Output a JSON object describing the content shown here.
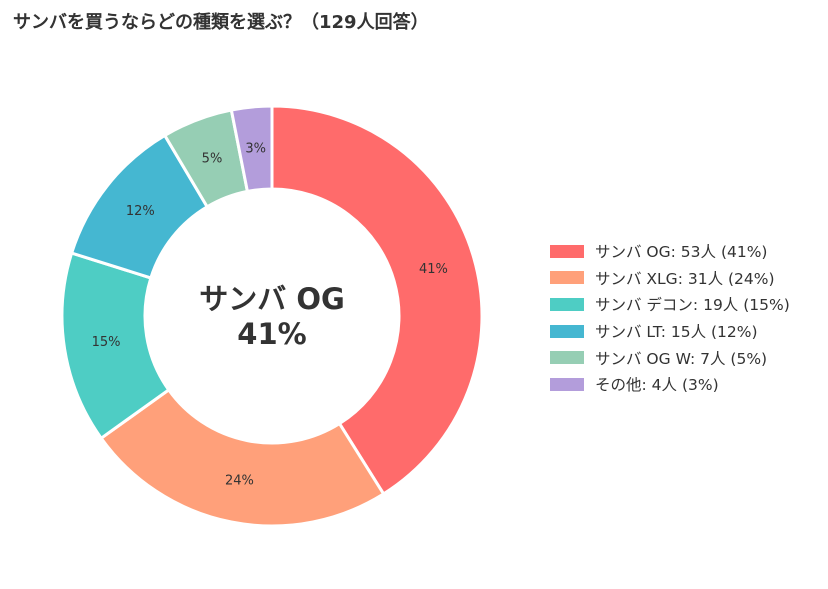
{
  "title": "サンバを買うならどの種類を選ぶ？（129人回答）",
  "center_label": {
    "name": "サンバ OG",
    "percent": "41%"
  },
  "chart_data": {
    "type": "pie",
    "donut": true,
    "title": "サンバを買うならどの種類を選ぶ？（129人回答）",
    "total": 129,
    "slices": [
      {
        "name": "サンバ OG",
        "value": 53,
        "percent": 41,
        "label": "41%",
        "legend": "サンバ OG:  53人 (41%)",
        "color": "#ff6b6b"
      },
      {
        "name": "サンバ XLG",
        "value": 31,
        "percent": 24,
        "label": "24%",
        "legend": "サンバ XLG:  31人 (24%)",
        "color": "#ffa07a"
      },
      {
        "name": "サンバ デコン",
        "value": 19,
        "percent": 15,
        "label": "15%",
        "legend": "サンバ デコン:  19人 (15%)",
        "color": "#4ecdc4"
      },
      {
        "name": "サンバ LT",
        "value": 15,
        "percent": 12,
        "label": "12%",
        "legend": "サンバ LT:  15人 (12%)",
        "color": "#45b7d1"
      },
      {
        "name": "サンバ OG W",
        "value": 7,
        "percent": 5,
        "label": "5%",
        "legend": "サンバ OG W:  7人 (5%)",
        "color": "#96ceb4"
      },
      {
        "name": "その他",
        "value": 4,
        "percent": 3,
        "label": "3%",
        "legend": "その他:  4人 (3%)",
        "color": "#b39ddb"
      }
    ],
    "start": "top",
    "direction": "clockwise",
    "legend_position": "right"
  }
}
